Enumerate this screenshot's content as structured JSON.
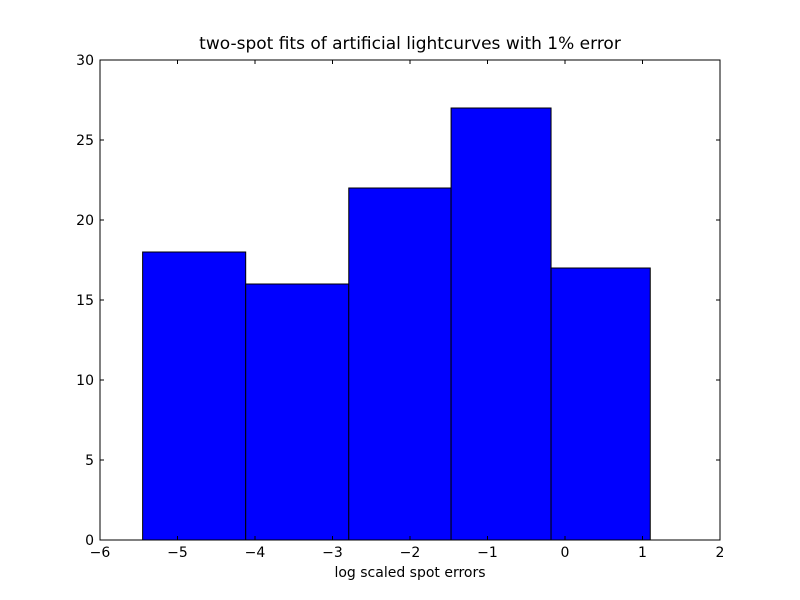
{
  "chart_data": {
    "type": "bar",
    "title": "two-spot fits of artificial lightcurves with 1% error",
    "xlabel": "log scaled spot errors",
    "ylabel": "",
    "xlim": [
      -6,
      2
    ],
    "ylim": [
      0,
      30
    ],
    "xticks": [
      -6,
      -5,
      -4,
      -3,
      -2,
      -1,
      0,
      1,
      2
    ],
    "xtick_labels": [
      "−6",
      "−5",
      "−4",
      "−3",
      "−2",
      "−1",
      "0",
      "1",
      "2"
    ],
    "yticks": [
      0,
      5,
      10,
      15,
      20,
      25,
      30
    ],
    "ytick_labels": [
      "0",
      "5",
      "10",
      "15",
      "20",
      "25",
      "30"
    ],
    "bins": [
      {
        "x0": -5.45,
        "x1": -4.12,
        "value": 18
      },
      {
        "x0": -4.12,
        "x1": -2.79,
        "value": 16
      },
      {
        "x0": -2.79,
        "x1": -1.47,
        "value": 22
      },
      {
        "x0": -1.47,
        "x1": -0.18,
        "value": 27
      },
      {
        "x0": -0.18,
        "x1": 1.1,
        "value": 17
      }
    ],
    "bar_color": "#0000ff",
    "edge_color": "#000000",
    "grid": false
  }
}
